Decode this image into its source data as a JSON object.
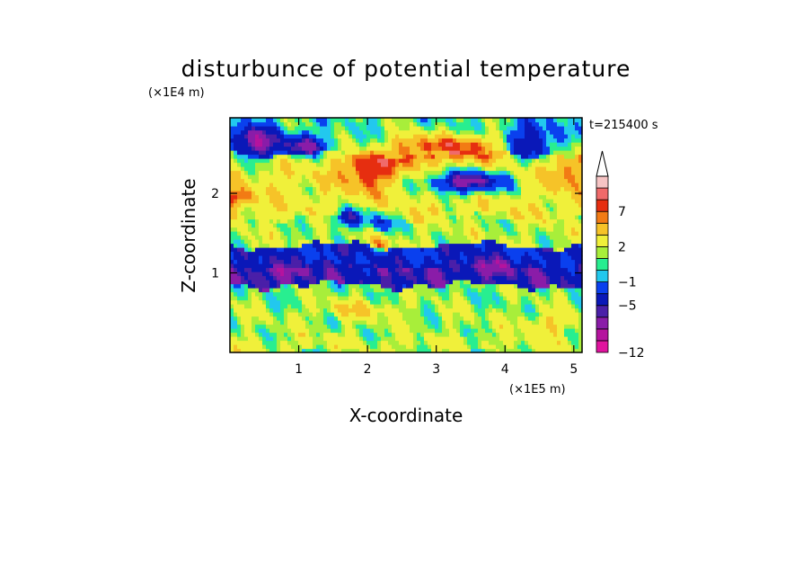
{
  "chart_data": {
    "type": "heatmap",
    "title": "disturbunce of potential temperature",
    "xlabel": "X-coordinate",
    "ylabel": "Z-coordinate",
    "x_unit": "(×1E5 m)",
    "y_unit": "(×1E4 m)",
    "time_label": "t=215400 s",
    "xlim": [
      0,
      5.12
    ],
    "ylim": [
      0,
      2.95
    ],
    "x_ticks": [
      {
        "value": 1,
        "label": "1"
      },
      {
        "value": 2,
        "label": "2"
      },
      {
        "value": 3,
        "label": "3"
      },
      {
        "value": 4,
        "label": "4"
      },
      {
        "value": 5,
        "label": "5"
      }
    ],
    "y_ticks": [
      {
        "value": 1,
        "label": "1"
      },
      {
        "value": 2,
        "label": "2"
      }
    ],
    "colorbar": {
      "levels": [
        -12,
        -10,
        -8,
        -6,
        -5,
        -3,
        -1,
        0,
        1,
        2,
        4,
        6,
        7,
        9,
        11
      ],
      "tick_labels": [
        {
          "value": 7,
          "label": "7"
        },
        {
          "value": 2,
          "label": "2"
        },
        {
          "value": -1,
          "label": "−1"
        },
        {
          "value": -5,
          "label": "−5"
        },
        {
          "value": -12,
          "label": "−12"
        }
      ],
      "colors": [
        "#e0139e",
        "#b5139e",
        "#8a1ca8",
        "#4a1fa8",
        "#0a18b8",
        "#0a40ee",
        "#22c8ee",
        "#28ee90",
        "#a8ee3a",
        "#f0f03a",
        "#f6c328",
        "#f27b14",
        "#e62e10",
        "#f06a6a",
        "#f6c4c4"
      ],
      "extend": "max"
    },
    "field": {
      "description_units": "potential temperature disturbance (K)",
      "bands": [
        {
          "z": [
            0.0,
            0.2
          ],
          "base": 2.2
        },
        {
          "z": [
            0.2,
            0.55
          ],
          "base": 1.5
        },
        {
          "z": [
            0.55,
            0.85
          ],
          "base": 1.2
        },
        {
          "z": [
            0.85,
            1.1
          ],
          "base": -5.0
        },
        {
          "z": [
            1.1,
            1.35
          ],
          "base": -3.5
        },
        {
          "z": [
            1.35,
            1.7
          ],
          "base": 1.8
        },
        {
          "z": [
            1.7,
            2.1
          ],
          "base": 3.0
        },
        {
          "z": [
            2.1,
            2.5
          ],
          "base": 3.2
        },
        {
          "z": [
            2.5,
            2.95
          ],
          "base": 0.6
        }
      ],
      "features": [
        {
          "x": 3.45,
          "z": 2.15,
          "amp": -10,
          "rx": 0.6,
          "rz": 0.14
        },
        {
          "x": 3.35,
          "z": 2.6,
          "amp": 7,
          "rx": 0.65,
          "rz": 0.15
        },
        {
          "x": 0.35,
          "z": 2.65,
          "amp": -8,
          "rx": 0.4,
          "rz": 0.22
        },
        {
          "x": 1.1,
          "z": 2.6,
          "amp": -7,
          "rx": 0.3,
          "rz": 0.14
        },
        {
          "x": 2.0,
          "z": 2.3,
          "amp": 6,
          "rx": 0.35,
          "rz": 0.25
        },
        {
          "x": 2.6,
          "z": 2.55,
          "amp": 5,
          "rx": 0.3,
          "rz": 0.2
        },
        {
          "x": 4.4,
          "z": 2.65,
          "amp": -6,
          "rx": 0.35,
          "rz": 0.25
        },
        {
          "x": 4.9,
          "z": 2.3,
          "amp": 4,
          "rx": 0.3,
          "rz": 0.25
        },
        {
          "x": 0.1,
          "z": 1.95,
          "amp": 5,
          "rx": 0.25,
          "rz": 0.12
        },
        {
          "x": 1.75,
          "z": 1.7,
          "amp": -6,
          "rx": 0.25,
          "rz": 0.12
        },
        {
          "x": 2.2,
          "z": 1.65,
          "amp": -4,
          "rx": 0.2,
          "rz": 0.15
        },
        {
          "x": 2.2,
          "z": 1.35,
          "amp": 4,
          "rx": 0.15,
          "rz": 0.12
        },
        {
          "x": 0.6,
          "z": 1.0,
          "amp": -2,
          "rx": 0.4,
          "rz": 0.15
        },
        {
          "x": 3.8,
          "z": 1.1,
          "amp": -2,
          "rx": 0.5,
          "rz": 0.1
        },
        {
          "x": 1.9,
          "z": 0.55,
          "amp": 2.5,
          "rx": 0.6,
          "rz": 0.12
        },
        {
          "x": 4.6,
          "z": 0.35,
          "amp": 2.5,
          "rx": 0.4,
          "rz": 0.15
        }
      ]
    }
  }
}
